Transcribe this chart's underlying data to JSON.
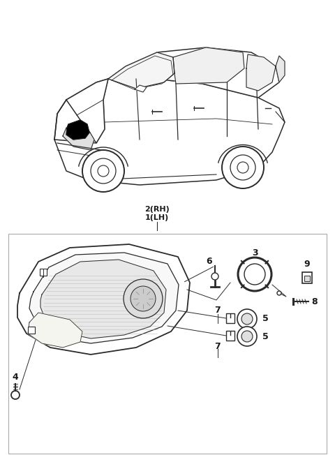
{
  "page_bg": "#ffffff",
  "line_color": "#2a2a2a",
  "text_color": "#1a1a1a",
  "gray_color": "#888888",
  "label_rh": "2(RH)",
  "label_lh": "1(LH)",
  "part_nums": [
    "3",
    "4",
    "5",
    "5",
    "6",
    "7",
    "7",
    "8",
    "9"
  ],
  "img_gray": "#cccccc"
}
